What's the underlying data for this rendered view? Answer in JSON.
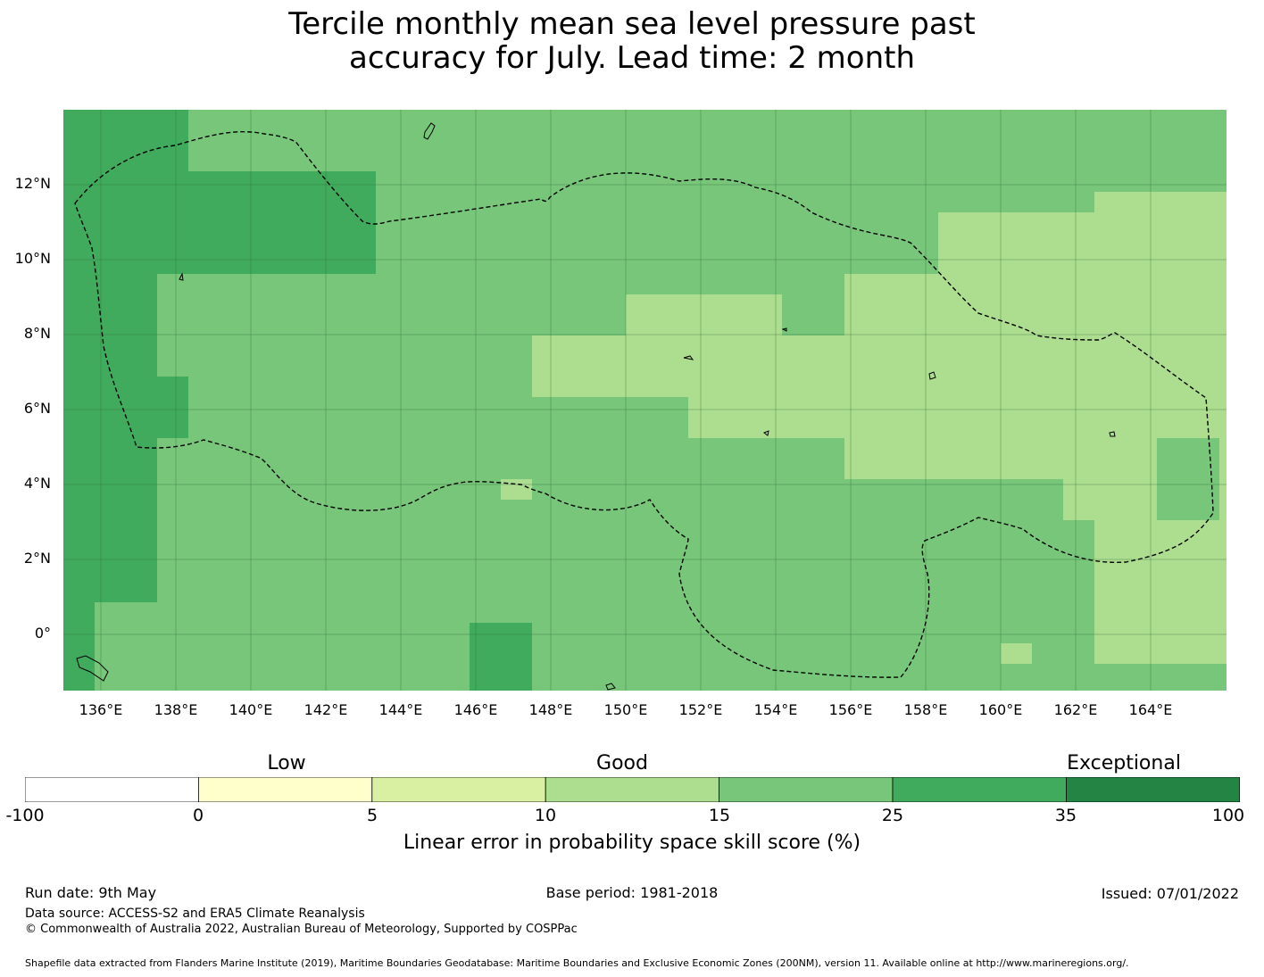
{
  "title_line1": "Tercile monthly mean sea level pressure past",
  "title_line2": "accuracy for July. Lead time: 2 month",
  "map": {
    "lat_labels": [
      "12°N",
      "10°N",
      "8°N",
      "6°N",
      "4°N",
      "2°N",
      "0°"
    ],
    "lon_labels": [
      "136°E",
      "138°E",
      "140°E",
      "142°E",
      "144°E",
      "146°E",
      "148°E",
      "150°E",
      "152°E",
      "154°E",
      "156°E",
      "158°E",
      "160°E",
      "162°E",
      "164°E"
    ],
    "colors": {
      "c0_5": "#ffffcc",
      "c5_10": "#d9f0a3",
      "c10_15": "#addd8e",
      "c15_25": "#78c679",
      "c25_35": "#41ab5d",
      "c35_100": "#238443",
      "c_neg": "#ffffff"
    }
  },
  "colorbar": {
    "categories": [
      "Low",
      "Good",
      "Exceptional"
    ],
    "ticks": [
      "-100",
      "0",
      "5",
      "10",
      "15",
      "25",
      "35",
      "100"
    ],
    "label": "Linear error in probability space skill score (%)"
  },
  "footer": {
    "run_date": "Run date: 9th May",
    "base_period": "Base period: 1981-2018",
    "issued": "Issued: 07/01/2022",
    "data_source": "Data source: ACCESS-S2 and ERA5 Climate Reanalysis",
    "copyright": "© Commonwealth of Australia 2022, Australian Bureau of Meteorology, Supported by COSPPac",
    "shapefile": "Shapefile data extracted from Flanders Marine Institute (2019), Maritime Boundaries Geodatabase: Maritime Boundaries and Exclusive Economic Zones (200NM), version 11. Available online at http://www.marineregions.org/."
  }
}
